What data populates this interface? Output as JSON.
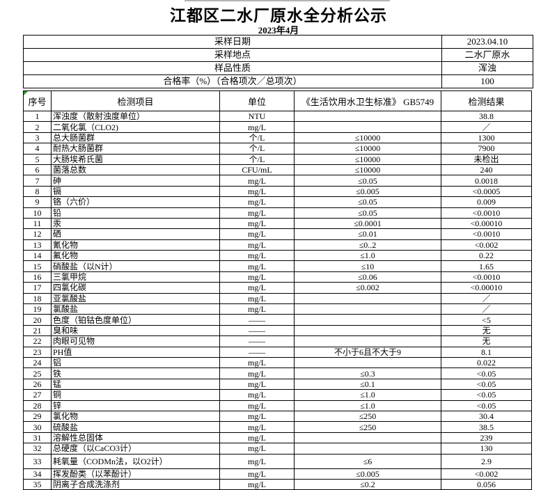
{
  "page": {
    "title": "江都区二水厂原水全分析公示",
    "subtitle": "2023年4月"
  },
  "colors": {
    "border": "#000000",
    "error_indicator": "#2f8f2f"
  },
  "info": {
    "rows": [
      {
        "label": "采样日期",
        "value": "2023.04.10"
      },
      {
        "label": "采样地点",
        "value": "二水厂原水"
      },
      {
        "label": "样品性质",
        "value": "浑浊"
      },
      {
        "label": "合格率（%）（合格项次／总项次）",
        "value": "100"
      }
    ]
  },
  "table": {
    "headers": [
      "序号",
      "检测项目",
      "单位",
      "《生活饮用水卫生标准》 GB5749",
      "检测结果"
    ],
    "rows": [
      [
        "1",
        "浑浊度（散射浊度单位）",
        "NTU",
        "",
        "38.8"
      ],
      [
        "2",
        "二氧化氯（CLO2)",
        "mg/L",
        "",
        "／"
      ],
      [
        "3",
        "总大肠菌群",
        "个/L",
        "≤10000",
        "1300"
      ],
      [
        "4",
        "耐热大肠菌群",
        "个/L",
        "≤10000",
        "7900"
      ],
      [
        "5",
        "大肠埃希氏菌",
        "个/L",
        "≤10000",
        "未检出"
      ],
      [
        "6",
        "菌落总数",
        "CFU/mL",
        "≤10000",
        "240"
      ],
      [
        "7",
        "砷",
        "mg/L",
        "≤0.05",
        "0.0018"
      ],
      [
        "8",
        "镉",
        "mg/L",
        "≤0.005",
        "<0.0005"
      ],
      [
        "9",
        "铬（六价）",
        "mg/L",
        "≤0.05",
        "0.009"
      ],
      [
        "10",
        "铅",
        "mg/L",
        "≤0.05",
        "<0.0010"
      ],
      [
        "11",
        "汞",
        "mg/L",
        "≤0.0001",
        "<0.00010"
      ],
      [
        "12",
        "硒",
        "mg/L",
        "≤0.01",
        "<0.0010"
      ],
      [
        "13",
        "氰化物",
        "mg/L",
        "≤0..2",
        "<0.002"
      ],
      [
        "14",
        "氟化物",
        "mg/L",
        "≤1.0",
        "0.22"
      ],
      [
        "15",
        "硝酸盐（以N计）",
        "mg/L",
        "≤10",
        "1.65"
      ],
      [
        "16",
        "三氯甲烷",
        "mg/L",
        "≤0.06",
        "<0.0010"
      ],
      [
        "17",
        "四氯化碳",
        "mg/L",
        "≤0.002",
        "<0.00010"
      ],
      [
        "18",
        "亚氯酸盐",
        "mg/L",
        "",
        "／"
      ],
      [
        "19",
        "氯酸盐",
        "mg/L",
        "",
        "／"
      ],
      [
        "20",
        "色度（铂钴色度单位）",
        "——",
        "",
        "<5"
      ],
      [
        "21",
        "臭和味",
        "——",
        "",
        "无"
      ],
      [
        "22",
        "肉眼可见物",
        "——",
        "",
        "无"
      ],
      [
        "23",
        "PH值",
        "——",
        "不小于6且不大于9",
        "8.1"
      ],
      [
        "24",
        "铝",
        "mg/L",
        "",
        "0.022"
      ],
      [
        "25",
        "铁",
        "mg/L",
        "≤0.3",
        "<0.05"
      ],
      [
        "26",
        "锰",
        "mg/L",
        "≤0.1",
        "<0.05"
      ],
      [
        "27",
        "铜",
        "mg/L",
        "≤1.0",
        "<0.05"
      ],
      [
        "28",
        "锌",
        "mg/L",
        "≤1.0",
        "<0.05"
      ],
      [
        "29",
        "氯化物",
        "mg/L",
        "≤250",
        "30.4"
      ],
      [
        "30",
        "硫酸盐",
        "mg/L",
        "≤250",
        "38.5"
      ],
      [
        "31",
        "溶解性总固体",
        "mg/L",
        "",
        "239"
      ],
      [
        "32",
        "总硬度（以CaCO3计）",
        "mg/L",
        "",
        "130"
      ],
      [
        "33",
        "耗氧量（CODMn法，以O2计）",
        "mg/L",
        "≤6",
        "2.9"
      ],
      [
        "34",
        "挥发酚类（以苯酚计）",
        "mg/L",
        "≤0.005",
        "<0.002"
      ],
      [
        "35",
        "阴离子合成洗涤剂",
        "mg/L",
        "≤0.2",
        "0.056"
      ]
    ],
    "tall_row_no": "33"
  }
}
